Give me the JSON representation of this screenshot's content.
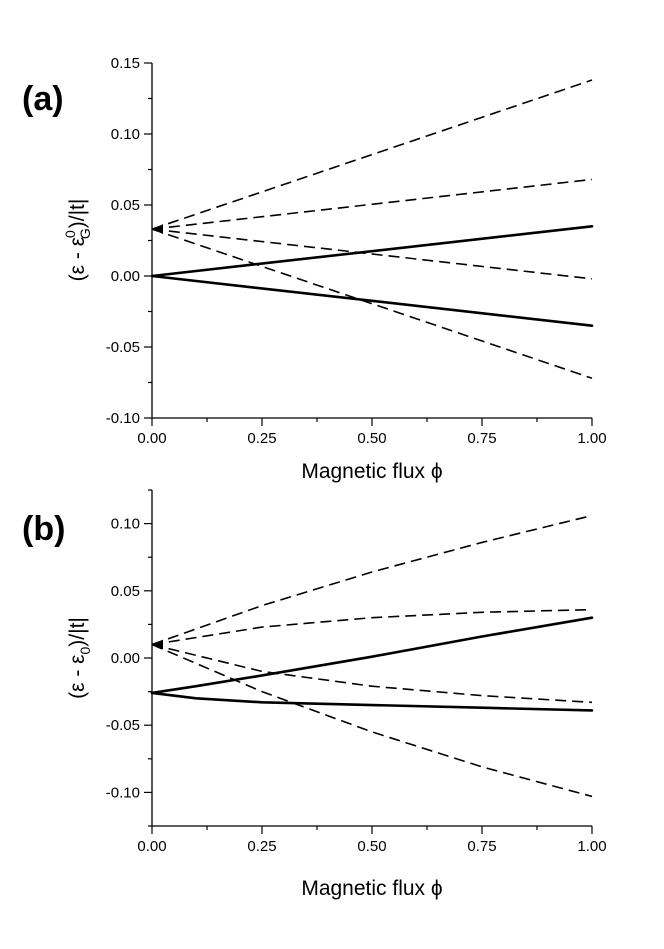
{
  "chart_data": [
    {
      "type": "line",
      "panel_label": "(a)",
      "xlabel": "Magnetic flux ϕ",
      "ylabel": "(ε - ε",
      "ylabel_sub": "G",
      "ylabel_sup": "0",
      "ylabel_end": ")/|t|",
      "xlim": [
        0,
        1
      ],
      "ylim": [
        -0.1,
        0.15
      ],
      "xticks": [
        0,
        0.25,
        0.5,
        0.75,
        1
      ],
      "xtick_labels": [
        "0.00",
        "0.25",
        "0.50",
        "0.75",
        "1.00"
      ],
      "yticks": [
        -0.1,
        -0.05,
        0,
        0.05,
        0.1,
        0.15
      ],
      "ytick_labels": [
        "-0.10",
        "-0.05",
        "0.00",
        "0.05",
        "0.10",
        "0.15"
      ],
      "series": [
        {
          "style": "solid",
          "x": [
            0,
            1
          ],
          "y": [
            0.0,
            0.035
          ]
        },
        {
          "style": "solid",
          "x": [
            0,
            1
          ],
          "y": [
            0.0,
            -0.035
          ]
        },
        {
          "style": "dashed",
          "x": [
            0,
            1
          ],
          "y": [
            0.033,
            0.138
          ]
        },
        {
          "style": "dashed",
          "x": [
            0,
            1
          ],
          "y": [
            0.033,
            0.068
          ]
        },
        {
          "style": "dashed",
          "x": [
            0,
            1
          ],
          "y": [
            0.033,
            -0.002
          ]
        },
        {
          "style": "dashed",
          "x": [
            0,
            1
          ],
          "y": [
            0.033,
            -0.072
          ]
        }
      ]
    },
    {
      "type": "line",
      "panel_label": "(b)",
      "xlabel": "Magnetic flux ϕ",
      "ylabel": "(ε - ε",
      "ylabel_sub": "0",
      "ylabel_sup": "",
      "ylabel_end": ")/|t|",
      "xlim": [
        0,
        1
      ],
      "ylim": [
        -0.125,
        0.125
      ],
      "xticks": [
        0,
        0.25,
        0.5,
        0.75,
        1
      ],
      "xtick_labels": [
        "0.00",
        "0.25",
        "0.50",
        "0.75",
        "1.00"
      ],
      "yticks": [
        -0.1,
        -0.05,
        0,
        0.05,
        0.1
      ],
      "ytick_labels": [
        "-0.10",
        "-0.05",
        "0.00",
        "0.05",
        "0.10"
      ],
      "series": [
        {
          "style": "solid",
          "x": [
            0,
            0.1,
            0.25,
            0.5,
            0.75,
            1
          ],
          "y": [
            -0.026,
            -0.021,
            -0.013,
            0.001,
            0.016,
            0.03
          ]
        },
        {
          "style": "solid",
          "x": [
            0,
            0.1,
            0.25,
            0.5,
            0.75,
            1
          ],
          "y": [
            -0.026,
            -0.03,
            -0.033,
            -0.035,
            -0.037,
            -0.039
          ]
        },
        {
          "style": "dashed",
          "x": [
            0,
            0.25,
            0.5,
            0.75,
            1
          ],
          "y": [
            0.01,
            0.039,
            0.064,
            0.086,
            0.106
          ]
        },
        {
          "style": "dashed",
          "x": [
            0,
            0.25,
            0.5,
            0.75,
            1
          ],
          "y": [
            0.01,
            0.023,
            0.03,
            0.034,
            0.036
          ]
        },
        {
          "style": "dashed",
          "x": [
            0,
            0.25,
            0.5,
            0.75,
            1
          ],
          "y": [
            0.01,
            -0.01,
            -0.021,
            -0.028,
            -0.033
          ]
        },
        {
          "style": "dashed",
          "x": [
            0,
            0.25,
            0.5,
            0.75,
            1
          ],
          "y": [
            0.01,
            -0.025,
            -0.055,
            -0.081,
            -0.103
          ]
        }
      ]
    }
  ]
}
